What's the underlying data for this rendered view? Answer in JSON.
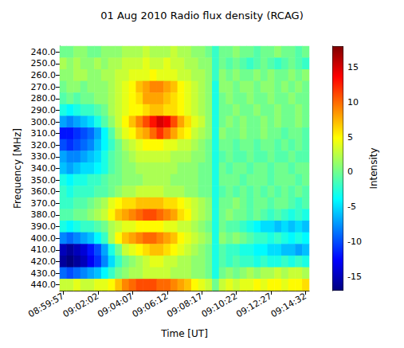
{
  "chart_data": {
    "type": "heatmap",
    "title": "01 Aug 2010 Radio flux density (RCAG)",
    "x_label": "Time [UT]",
    "y_label": "Frequency [MHz]",
    "x": [
      "08:59:57",
      null,
      null,
      null,
      null,
      "09:02:02",
      null,
      null,
      null,
      null,
      "09:04:07",
      null,
      null,
      null,
      null,
      "09:06:12",
      null,
      null,
      null,
      null,
      "09:08:17",
      null,
      null,
      null,
      null,
      "09:10:22",
      null,
      null,
      null,
      null,
      "09:12:27",
      null,
      null,
      null,
      null,
      "09:14:32"
    ],
    "y": [
      "240.0",
      "250.0",
      "260.0",
      "270.0",
      "280.0",
      "290.0",
      "300.0",
      "310.0",
      "320.0",
      "330.0",
      "340.0",
      "350.0",
      "360.0",
      "370.0",
      "380.0",
      "390.0",
      "400.0",
      "410.0",
      "420.0",
      "430.0",
      "440.0"
    ],
    "cells": [
      [
        0,
        0,
        1,
        1,
        0,
        0,
        1,
        1,
        1,
        2,
        2,
        2,
        3,
        2,
        2,
        2,
        3,
        2,
        2,
        1,
        1,
        0,
        -2,
        0,
        0,
        1,
        0,
        0,
        -1,
        0,
        0,
        1,
        0,
        0,
        -1,
        0
      ],
      [
        2,
        1,
        2,
        1,
        1,
        2,
        1,
        2,
        2,
        3,
        3,
        3,
        4,
        3,
        3,
        4,
        3,
        3,
        2,
        2,
        1,
        1,
        -2,
        0,
        -1,
        0,
        -1,
        -2,
        -1,
        0,
        -1,
        -2,
        -1,
        0,
        -1,
        -2
      ],
      [
        1,
        1,
        2,
        2,
        1,
        1,
        2,
        2,
        3,
        3,
        4,
        4,
        4,
        5,
        4,
        4,
        4,
        3,
        3,
        2,
        2,
        1,
        -2,
        1,
        0,
        1,
        0,
        0,
        1,
        0,
        1,
        0,
        0,
        1,
        0,
        1
      ],
      [
        0,
        1,
        1,
        0,
        1,
        1,
        1,
        2,
        3,
        4,
        5,
        7,
        8,
        9,
        9,
        8,
        7,
        5,
        4,
        3,
        2,
        1,
        -3,
        1,
        1,
        0,
        1,
        1,
        0,
        1,
        1,
        0,
        1,
        0,
        1,
        0
      ],
      [
        -1,
        0,
        -1,
        0,
        0,
        1,
        1,
        2,
        3,
        4,
        5,
        6,
        8,
        8,
        8,
        7,
        6,
        5,
        4,
        3,
        2,
        1,
        -3,
        0,
        1,
        0,
        0,
        1,
        0,
        0,
        1,
        0,
        0,
        1,
        0,
        0
      ],
      [
        -3,
        -4,
        -3,
        -2,
        -2,
        -1,
        0,
        2,
        3,
        4,
        5,
        5,
        6,
        7,
        7,
        6,
        6,
        5,
        4,
        3,
        2,
        1,
        -3,
        0,
        0,
        1,
        0,
        0,
        1,
        0,
        0,
        1,
        0,
        0,
        1,
        0
      ],
      [
        -7,
        -8,
        -7,
        -6,
        -5,
        -3,
        -1,
        1,
        3,
        5,
        7,
        9,
        11,
        13,
        15,
        14,
        11,
        8,
        6,
        4,
        3,
        1,
        -3,
        0,
        1,
        0,
        1,
        0,
        0,
        1,
        0,
        1,
        0,
        0,
        1,
        0
      ],
      [
        -12,
        -12,
        -11,
        -10,
        -9,
        -7,
        -4,
        -1,
        2,
        4,
        5,
        7,
        8,
        10,
        12,
        10,
        8,
        6,
        5,
        3,
        2,
        1,
        -3,
        1,
        0,
        0,
        1,
        0,
        0,
        1,
        0,
        0,
        -1,
        0,
        0,
        -1
      ],
      [
        -10,
        -11,
        -10,
        -9,
        -8,
        -6,
        -4,
        -2,
        0,
        2,
        3,
        4,
        5,
        5,
        5,
        4,
        4,
        3,
        3,
        2,
        1,
        0,
        -3,
        0,
        0,
        -1,
        0,
        0,
        -1,
        0,
        0,
        -1,
        0,
        -1,
        0,
        -1
      ],
      [
        -7,
        -8,
        -8,
        -7,
        -6,
        -5,
        -3,
        -1,
        0,
        1,
        2,
        3,
        3,
        3,
        3,
        3,
        2,
        2,
        2,
        1,
        1,
        0,
        -3,
        -1,
        0,
        -1,
        -1,
        0,
        -1,
        -1,
        0,
        -1,
        -1,
        0,
        -1,
        -1
      ],
      [
        -6,
        -7,
        -6,
        -5,
        -5,
        -4,
        -3,
        -1,
        0,
        1,
        1,
        2,
        2,
        2,
        2,
        2,
        2,
        1,
        1,
        1,
        0,
        0,
        -3,
        0,
        -1,
        0,
        0,
        -1,
        0,
        0,
        -1,
        0,
        0,
        -1,
        0,
        0
      ],
      [
        -3,
        -4,
        -3,
        -3,
        -2,
        -2,
        -1,
        0,
        0,
        1,
        1,
        1,
        2,
        2,
        2,
        2,
        1,
        1,
        1,
        1,
        0,
        0,
        -3,
        0,
        0,
        0,
        -1,
        0,
        0,
        0,
        -1,
        0,
        0,
        0,
        -1,
        0
      ],
      [
        -2,
        -3,
        -2,
        -2,
        -2,
        -1,
        -1,
        0,
        1,
        2,
        2,
        3,
        3,
        3,
        3,
        2,
        2,
        2,
        1,
        1,
        0,
        0,
        -3,
        -1,
        0,
        -1,
        0,
        -1,
        0,
        -1,
        0,
        -1,
        0,
        -1,
        0,
        -1
      ],
      [
        -2,
        -2,
        -1,
        -1,
        0,
        1,
        2,
        4,
        5,
        6,
        6,
        7,
        7,
        7,
        7,
        6,
        6,
        5,
        4,
        3,
        2,
        1,
        -3,
        0,
        0,
        1,
        0,
        -1,
        0,
        0,
        -1,
        0,
        0,
        -1,
        -2,
        -1
      ],
      [
        -1,
        -1,
        0,
        0,
        1,
        2,
        3,
        5,
        7,
        8,
        9,
        10,
        11,
        11,
        10,
        9,
        8,
        6,
        5,
        3,
        2,
        1,
        -3,
        0,
        1,
        0,
        0,
        -1,
        0,
        -1,
        -2,
        -1,
        -2,
        -3,
        -2,
        -3
      ],
      [
        -3,
        -4,
        -3,
        -2,
        -2,
        -1,
        0,
        2,
        3,
        4,
        4,
        5,
        5,
        5,
        5,
        4,
        4,
        3,
        3,
        2,
        1,
        0,
        -3,
        0,
        -1,
        -1,
        -2,
        -3,
        -4,
        -5,
        -5,
        -6,
        -5,
        -6,
        -5,
        -6
      ],
      [
        -8,
        -9,
        -8,
        -7,
        -6,
        -4,
        -2,
        2,
        5,
        7,
        8,
        9,
        10,
        10,
        9,
        8,
        7,
        5,
        4,
        3,
        2,
        1,
        -3,
        1,
        0,
        1,
        0,
        -1,
        -2,
        -2,
        -3,
        -2,
        -3,
        -4,
        -3,
        -4
      ],
      [
        -15,
        -16,
        -15,
        -14,
        -12,
        -10,
        -7,
        -3,
        0,
        3,
        4,
        5,
        6,
        7,
        7,
        6,
        5,
        4,
        3,
        2,
        1,
        0,
        -3,
        -1,
        -2,
        -2,
        -3,
        -3,
        -4,
        -4,
        -5,
        -5,
        -6,
        -6,
        -7,
        -6
      ],
      [
        -16,
        -17,
        -16,
        -15,
        -13,
        -11,
        -8,
        -5,
        -2,
        0,
        1,
        2,
        3,
        4,
        4,
        3,
        3,
        2,
        2,
        1,
        1,
        0,
        -3,
        -1,
        -2,
        -1,
        -2,
        -2,
        -3,
        -2,
        -3,
        -3,
        -2,
        -3,
        -2,
        -3
      ],
      [
        -9,
        -10,
        -9,
        -8,
        -7,
        -6,
        -4,
        -2,
        0,
        1,
        2,
        2,
        3,
        3,
        3,
        3,
        2,
        2,
        2,
        1,
        1,
        0,
        -3,
        0,
        1,
        0,
        1,
        2,
        1,
        2,
        2,
        3,
        2,
        3,
        3,
        2
      ],
      [
        3,
        3,
        4,
        3,
        3,
        4,
        4,
        5,
        7,
        9,
        10,
        11,
        11,
        11,
        10,
        10,
        9,
        8,
        7,
        5,
        4,
        3,
        0,
        3,
        4,
        3,
        4,
        4,
        5,
        4,
        5,
        5,
        4,
        5,
        5,
        6
      ]
    ],
    "colorbar_label": "Intensity",
    "colorbar_lim": [
      -17,
      18
    ],
    "colorbar_ticks": [
      -15,
      -10,
      -5,
      0,
      5,
      10,
      15
    ]
  }
}
